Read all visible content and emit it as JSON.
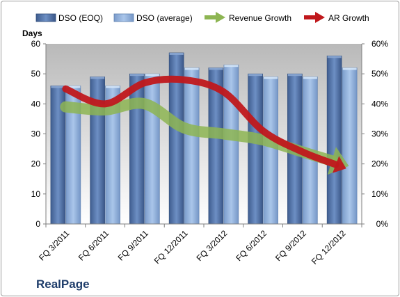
{
  "chart_data": {
    "type": "bar",
    "company": "RealPage",
    "ylabel": "Days",
    "ylim": [
      0,
      60
    ],
    "y2lim": [
      0,
      0.6
    ],
    "y_ticks": [
      "0",
      "10",
      "20",
      "30",
      "40",
      "50",
      "60"
    ],
    "y2_ticks": [
      "0%",
      "10%",
      "20%",
      "30%",
      "40%",
      "50%",
      "60%"
    ],
    "categories": [
      "FQ 3/2011",
      "FQ 6/2011",
      "FQ 9/2011",
      "FQ 12/2011",
      "FQ 3/2012",
      "FQ 6/2012",
      "FQ 9/2012",
      "FQ 12/2012"
    ],
    "series": [
      {
        "name": "DSO (EOQ)",
        "type": "bar",
        "axis": "left",
        "color": "#4f6fa3",
        "values": [
          46,
          49,
          50,
          57,
          52,
          50,
          50,
          56
        ]
      },
      {
        "name": "DSO (average)",
        "type": "bar",
        "axis": "left",
        "color": "#8fb2dc",
        "values": [
          46,
          46,
          50,
          52,
          53,
          49,
          49,
          52
        ]
      },
      {
        "name": "Revenue Growth",
        "type": "arrow",
        "axis": "right",
        "color": "#8db552",
        "values": [
          0.39,
          0.38,
          0.4,
          0.32,
          0.3,
          0.28,
          0.24,
          0.2
        ]
      },
      {
        "name": "AR Growth",
        "type": "arrow",
        "axis": "right",
        "color": "#c0181c",
        "values": [
          0.45,
          0.4,
          0.47,
          0.48,
          0.44,
          0.31,
          0.24,
          0.19
        ]
      }
    ],
    "grid": false,
    "legend_position": "top"
  }
}
